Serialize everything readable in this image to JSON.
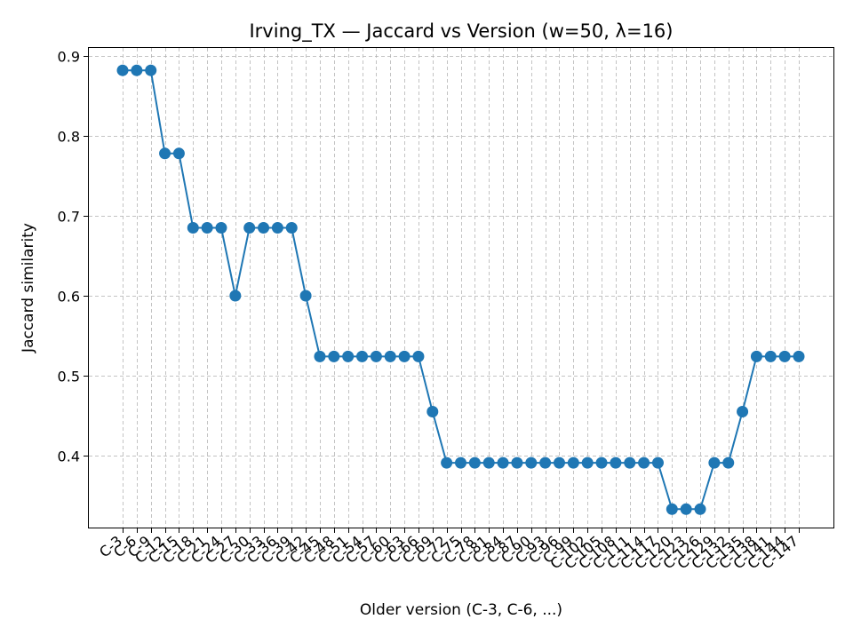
{
  "chart_data": {
    "type": "line",
    "title": "Irving_TX — Jaccard vs Version (w=50, λ=16)",
    "xlabel": "Older version (C-3, C-6, ...)",
    "ylabel": "Jaccard similarity",
    "ylim": [
      0.31,
      0.91
    ],
    "yticks": [
      "0.4",
      "0.5",
      "0.6",
      "0.7",
      "0.8",
      "0.9"
    ],
    "grid": true,
    "categories": [
      "C-3",
      "C-6",
      "C-9",
      "C-12",
      "C-15",
      "C-18",
      "C-21",
      "C-24",
      "C-27",
      "C-30",
      "C-33",
      "C-36",
      "C-39",
      "C-42",
      "C-45",
      "C-48",
      "C-51",
      "C-54",
      "C-57",
      "C-60",
      "C-63",
      "C-66",
      "C-69",
      "C-72",
      "C-75",
      "C-78",
      "C-81",
      "C-84",
      "C-87",
      "C-90",
      "C-93",
      "C-96",
      "C-99",
      "C-102",
      "C-105",
      "C-108",
      "C-111",
      "C-114",
      "C-117",
      "C-120",
      "C-123",
      "C-126",
      "C-129",
      "C-132",
      "C-135",
      "C-138",
      "C-141",
      "C-144",
      "C-147"
    ],
    "series": [
      {
        "color": "#1f77b4",
        "values": [
          0.882,
          0.882,
          0.882,
          0.778,
          0.778,
          0.685,
          0.685,
          0.685,
          0.6,
          0.685,
          0.685,
          0.685,
          0.685,
          0.6,
          0.524,
          0.524,
          0.524,
          0.524,
          0.524,
          0.524,
          0.524,
          0.524,
          0.455,
          0.391,
          0.391,
          0.391,
          0.391,
          0.391,
          0.391,
          0.391,
          0.391,
          0.391,
          0.391,
          0.391,
          0.391,
          0.391,
          0.391,
          0.391,
          0.391,
          0.333,
          0.333,
          0.333,
          0.391,
          0.391,
          0.455,
          0.524,
          0.524,
          0.524,
          0.524
        ]
      }
    ]
  }
}
